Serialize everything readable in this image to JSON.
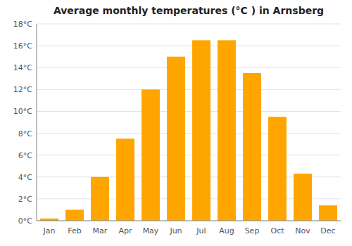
{
  "chart_data": {
    "type": "bar",
    "title": "Average monthly temperatures (°C ) in Arnsberg",
    "categories": [
      "Jan",
      "Feb",
      "Mar",
      "Apr",
      "May",
      "Jun",
      "Jul",
      "Aug",
      "Sep",
      "Oct",
      "Nov",
      "Dec"
    ],
    "values": [
      0.2,
      1.0,
      4.0,
      7.5,
      12.0,
      15.0,
      16.5,
      16.5,
      13.5,
      9.5,
      4.3,
      1.4
    ],
    "color": "#FFA500",
    "ylim": [
      0,
      18
    ],
    "yticks": [
      {
        "value": 0,
        "label": "0°C"
      },
      {
        "value": 2,
        "label": "2°C"
      },
      {
        "value": 4,
        "label": "4°C"
      },
      {
        "value": 6,
        "label": "6°C"
      },
      {
        "value": 8,
        "label": "8°C"
      },
      {
        "value": 10,
        "label": "10°C"
      },
      {
        "value": 12,
        "label": "12°C"
      },
      {
        "value": 14,
        "label": "14°C"
      },
      {
        "value": 16,
        "label": "16°C"
      },
      {
        "value": 18,
        "label": "18°C"
      }
    ],
    "grid": true
  }
}
